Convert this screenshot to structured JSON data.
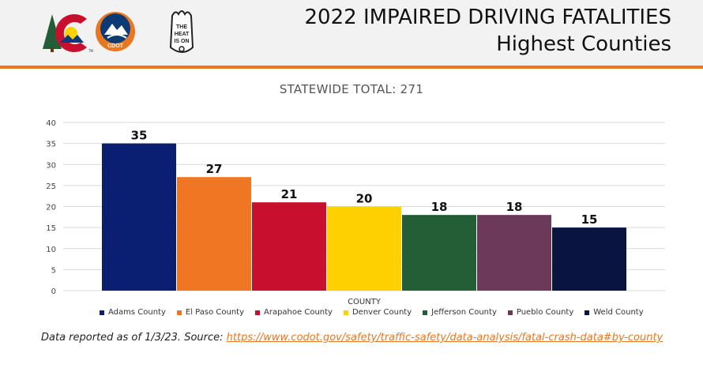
{
  "header": {
    "title_line1": "2022 IMPAIRED DRIVING FATALITIES",
    "title_line2": "Highest Counties",
    "logos": [
      {
        "name": "colorado-c-logo",
        "text": "TM"
      },
      {
        "name": "cdot-logo",
        "text": "CDOT"
      },
      {
        "name": "heat-is-on-logo",
        "text": "THE HEAT IS ON"
      }
    ]
  },
  "colors": {
    "accent": "#e87722",
    "header_bg": "#f2f2f2",
    "gridline": "#d9d9d9"
  },
  "chart_data": {
    "type": "bar",
    "title": "STATEWIDE TOTAL: 271",
    "xlabel": "COUNTY",
    "ylabel": "",
    "ylim": [
      0,
      40
    ],
    "yticks": [
      0,
      5,
      10,
      15,
      20,
      25,
      30,
      35,
      40
    ],
    "grid": true,
    "legend_position": "bottom",
    "series": [
      {
        "name": "Adams County",
        "value": 35,
        "color": "#0b1f72"
      },
      {
        "name": "El Paso County",
        "value": 27,
        "color": "#ef7622"
      },
      {
        "name": "Arapahoe County",
        "value": 21,
        "color": "#c8102e"
      },
      {
        "name": "Denver County",
        "value": 20,
        "color": "#ffd100"
      },
      {
        "name": "Jefferson County",
        "value": 18,
        "color": "#245e36"
      },
      {
        "name": "Pueblo County",
        "value": 18,
        "color": "#6b3a5b"
      },
      {
        "name": "Weld County",
        "value": 15,
        "color": "#0a1440"
      }
    ]
  },
  "footnote": {
    "prefix": "Data reported as of 1/3/23. Source: ",
    "link_text": "https://www.codot.gov/safety/traffic-safety/data-analysis/fatal-crash-data#by-county"
  }
}
